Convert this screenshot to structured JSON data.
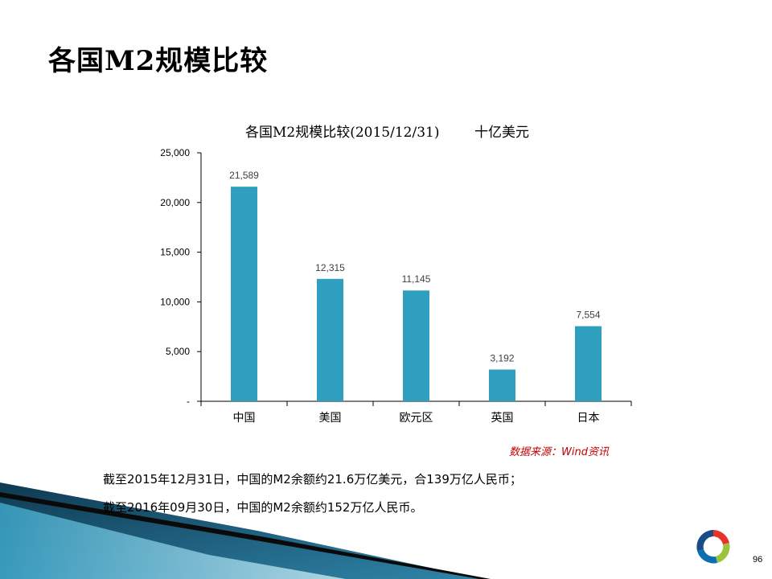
{
  "slide": {
    "title": "各国M2规模比较",
    "page_number": "96"
  },
  "chart_data": {
    "type": "bar",
    "title": "各国M2规模比较(2015/12/31)",
    "unit": "十亿美元",
    "categories": [
      "中国",
      "美国",
      "欧元区",
      "英国",
      "日本"
    ],
    "values": [
      21589,
      12315,
      11145,
      3192,
      7554
    ],
    "value_labels": [
      "21,589",
      "12,315",
      "11,145",
      "3,192",
      "7,554"
    ],
    "ylim": [
      0,
      25000
    ],
    "yticks": [
      0,
      5000,
      10000,
      15000,
      20000,
      25000
    ],
    "ytick_labels": [
      "-",
      "5,000",
      "10,000",
      "15,000",
      "20,000",
      "25,000"
    ],
    "bar_color": "#2e9fbf",
    "grid": false,
    "legend": "none"
  },
  "source": "数据来源：Wind资讯",
  "notes": [
    "截至2015年12月31日，中国的M2余额约21.6万亿美元，合139万亿人民币；",
    "截至2016年09月30日，中国的M2余额约152万亿人民币。"
  ],
  "colors": {
    "source_text": "#c00000",
    "deco_dark": "#0f3a52",
    "deco_light": "#7fc9e0"
  },
  "logo": {
    "icon": "ring-logo-icon"
  }
}
